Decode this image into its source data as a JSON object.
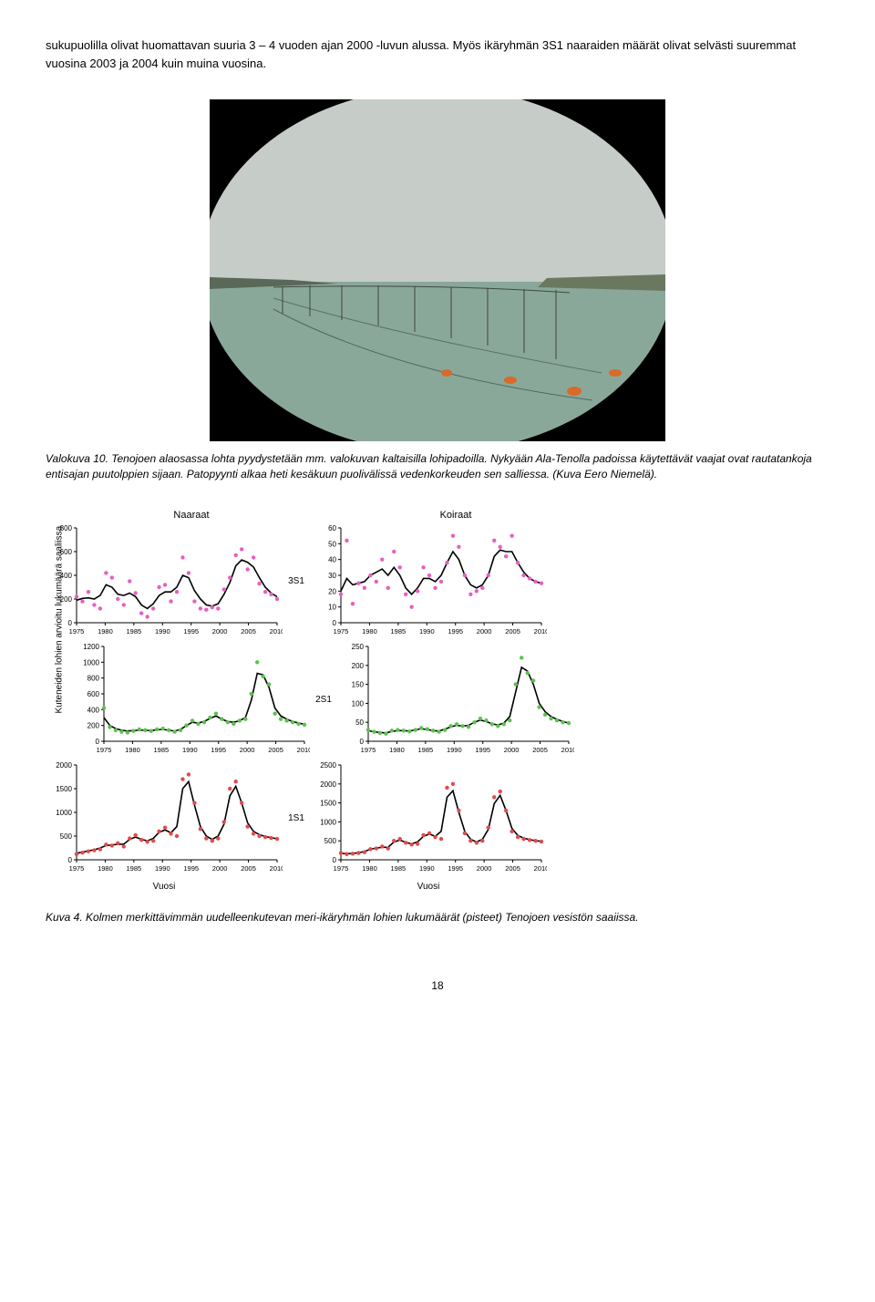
{
  "intro_text": "sukupuolilla olivat huomattavan suuria 3 – 4 vuoden ajan 2000 -luvun alussa. Myös ikäryhmän 3S1 naaraiden määrät olivat selvästi suuremmat vuosina 2003 ja 2004 kuin muina vuosina.",
  "photo_caption": "Valokuva 10. Tenojoen alaosassa lohta pyydystetään mm. valokuvan kaltaisilla lohipadoilla. Nykyään Ala-Tenolla padoissa käytettävät vaajat ovat rautatankoja entisajan puutolppien sijaan. Patopyynti alkaa heti kesäkuun puolivälissä vedenkorkeuden sen salliessa. (Kuva Eero Niemelä).",
  "chart_headers": {
    "left": "Naaraat",
    "right": "Koiraat"
  },
  "row_labels": {
    "r1": "3S1",
    "r2": "2S1",
    "r3": "1S1"
  },
  "yaxis_label": "Kuteneiden lohien arvioitu lukumäärä saaliissa",
  "xaxis_label": "Vuosi",
  "x_ticks": [
    1975,
    1980,
    1985,
    1990,
    1995,
    2000,
    2005,
    2010
  ],
  "colors": {
    "line": "#000000",
    "pts_3s1": "#e85fbf",
    "pts_2s1": "#5bc24e",
    "pts_1s1": "#e34a4a",
    "axis": "#000000",
    "photo_sky": "#c6ccc8",
    "photo_water": "#8aa89a",
    "photo_land_left": "#5a6858",
    "photo_land_right": "#6a7860",
    "buoy": "#d86a2a"
  },
  "charts": {
    "n3s1": {
      "ylim": [
        0,
        800
      ],
      "yticks": [
        0,
        200,
        400,
        600,
        800
      ],
      "pts": [
        220,
        180,
        260,
        150,
        120,
        420,
        380,
        200,
        150,
        350,
        250,
        80,
        50,
        120,
        300,
        320,
        180,
        260,
        550,
        420,
        180,
        120,
        110,
        130,
        120,
        280,
        380,
        570,
        620,
        450,
        550,
        330,
        260,
        240,
        200
      ],
      "line": [
        190,
        205,
        210,
        200,
        230,
        320,
        300,
        240,
        230,
        250,
        220,
        150,
        120,
        160,
        230,
        260,
        260,
        300,
        400,
        380,
        270,
        200,
        150,
        140,
        160,
        240,
        340,
        480,
        530,
        510,
        470,
        380,
        300,
        250,
        220
      ]
    },
    "k3s1": {
      "ylim": [
        0,
        60
      ],
      "yticks": [
        0,
        10,
        20,
        30,
        40,
        50,
        60
      ],
      "pts": [
        18,
        52,
        12,
        25,
        22,
        30,
        26,
        40,
        22,
        45,
        35,
        18,
        10,
        20,
        35,
        30,
        22,
        26,
        38,
        55,
        48,
        30,
        18,
        20,
        22,
        30,
        52,
        48,
        42,
        55,
        38,
        30,
        28,
        26,
        25
      ],
      "line": [
        20,
        28,
        24,
        25,
        26,
        30,
        32,
        34,
        30,
        35,
        30,
        22,
        18,
        22,
        28,
        28,
        26,
        30,
        38,
        45,
        40,
        30,
        24,
        22,
        24,
        30,
        42,
        46,
        45,
        45,
        38,
        32,
        28,
        26,
        25
      ]
    },
    "n2s1": {
      "ylim": [
        0,
        1200
      ],
      "yticks": [
        0,
        200,
        400,
        600,
        800,
        1000,
        1200
      ],
      "pts": [
        420,
        180,
        140,
        120,
        110,
        130,
        150,
        140,
        130,
        150,
        160,
        140,
        120,
        140,
        200,
        260,
        220,
        240,
        300,
        350,
        280,
        240,
        220,
        260,
        280,
        600,
        1000,
        820,
        720,
        350,
        280,
        260,
        240,
        220,
        210
      ],
      "line": [
        300,
        200,
        160,
        140,
        130,
        135,
        140,
        140,
        135,
        145,
        150,
        140,
        130,
        150,
        200,
        240,
        230,
        250,
        290,
        320,
        280,
        250,
        240,
        260,
        300,
        520,
        860,
        840,
        680,
        420,
        320,
        280,
        250,
        230,
        215
      ]
    },
    "k2s1": {
      "ylim": [
        0,
        250
      ],
      "yticks": [
        0,
        50,
        100,
        150,
        200,
        250
      ],
      "pts": [
        30,
        25,
        22,
        20,
        28,
        30,
        28,
        26,
        30,
        35,
        32,
        28,
        25,
        30,
        40,
        45,
        40,
        38,
        50,
        60,
        55,
        45,
        40,
        45,
        55,
        150,
        220,
        180,
        160,
        90,
        70,
        60,
        55,
        50,
        48
      ],
      "line": [
        28,
        25,
        23,
        22,
        26,
        28,
        28,
        27,
        30,
        33,
        31,
        28,
        27,
        32,
        38,
        42,
        40,
        42,
        50,
        56,
        52,
        46,
        43,
        48,
        65,
        130,
        195,
        185,
        150,
        100,
        78,
        65,
        58,
        52,
        48
      ]
    },
    "n1s1": {
      "ylim": [
        0,
        2000
      ],
      "yticks": [
        0,
        500,
        1000,
        1500,
        2000
      ],
      "pts": [
        120,
        150,
        180,
        200,
        220,
        320,
        300,
        350,
        280,
        450,
        520,
        420,
        380,
        400,
        600,
        680,
        550,
        500,
        1700,
        1800,
        1200,
        650,
        450,
        400,
        450,
        800,
        1500,
        1650,
        1200,
        700,
        550,
        500,
        480,
        460,
        440
      ],
      "line": [
        140,
        160,
        190,
        210,
        250,
        300,
        315,
        325,
        330,
        430,
        480,
        430,
        400,
        450,
        580,
        630,
        570,
        700,
        1500,
        1650,
        1150,
        700,
        500,
        430,
        500,
        750,
        1350,
        1550,
        1200,
        780,
        600,
        530,
        490,
        465,
        445
      ]
    },
    "k1s1": {
      "ylim": [
        0,
        2500
      ],
      "yticks": [
        0,
        500,
        1000,
        1500,
        2000,
        2500
      ],
      "pts": [
        180,
        150,
        160,
        180,
        200,
        280,
        300,
        350,
        300,
        500,
        550,
        450,
        400,
        420,
        650,
        700,
        600,
        550,
        1900,
        2000,
        1300,
        700,
        500,
        450,
        500,
        850,
        1650,
        1800,
        1300,
        750,
        600,
        550,
        520,
        500,
        480
      ],
      "line": [
        170,
        160,
        170,
        185,
        220,
        280,
        310,
        330,
        330,
        470,
        520,
        460,
        420,
        470,
        620,
        680,
        620,
        750,
        1650,
        1820,
        1250,
        750,
        540,
        470,
        540,
        800,
        1480,
        1700,
        1300,
        830,
        640,
        570,
        530,
        505,
        485
      ]
    }
  },
  "fig_caption": "Kuva 4. Kolmen merkittävimmän uudelleenkutevan meri-ikäryhmän lohien lukumäärät (pisteet) Tenojoen vesistön saaiissa.",
  "page_number": "18"
}
